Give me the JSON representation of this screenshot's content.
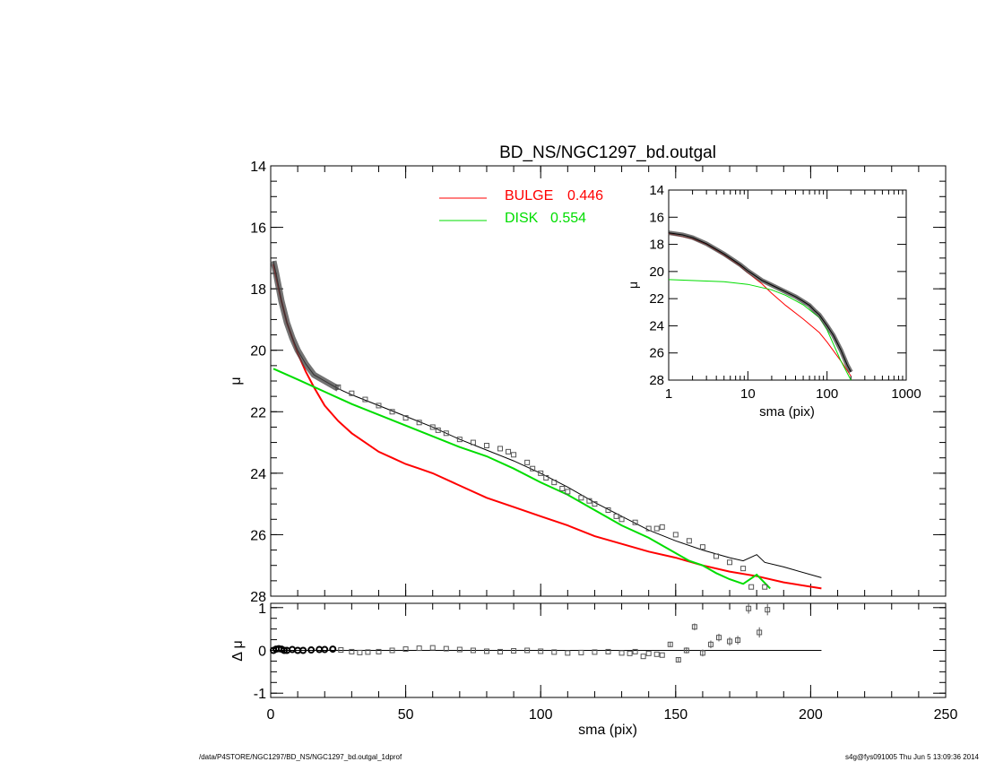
{
  "chart_data": [
    {
      "id": "main",
      "type": "line",
      "title": "BD_NS/NGC1297_bd.outgal",
      "xlabel": "",
      "ylabel": "μ",
      "xlim": [
        0,
        250
      ],
      "ylim": [
        28,
        14
      ],
      "x_ticks": [
        0,
        50,
        100,
        150,
        200,
        250
      ],
      "x_tick_labels": [
        "0",
        "50",
        "100",
        "150",
        "200",
        "250"
      ],
      "y_ticks": [
        14,
        16,
        18,
        20,
        22,
        24,
        26,
        28
      ],
      "y_tick_labels": [
        "14",
        "16",
        "18",
        "20",
        "22",
        "24",
        "26",
        "28"
      ],
      "legend": [
        {
          "label": "BULGE",
          "value": "0.446",
          "color": "#ff0000"
        },
        {
          "label": "DISK",
          "value": "0.554",
          "color": "#00dd00"
        }
      ],
      "series": [
        {
          "name": "BULGE",
          "color": "#ff0000",
          "x": [
            1,
            2,
            3,
            4,
            6,
            8,
            10,
            13,
            16,
            20,
            25,
            30,
            35,
            40,
            45,
            50,
            55,
            60,
            70,
            80,
            90,
            100,
            110,
            120,
            130,
            140,
            150,
            160,
            170,
            180,
            190,
            204
          ],
          "y": [
            17.2,
            17.6,
            18.0,
            18.4,
            19.1,
            19.6,
            20.1,
            20.7,
            21.2,
            21.8,
            22.3,
            22.7,
            23.0,
            23.3,
            23.5,
            23.7,
            23.85,
            24.0,
            24.4,
            24.8,
            25.1,
            25.4,
            25.7,
            26.05,
            26.3,
            26.55,
            26.75,
            27.0,
            27.2,
            27.35,
            27.55,
            27.75
          ]
        },
        {
          "name": "DISK",
          "color": "#00dd00",
          "x": [
            1,
            10,
            20,
            30,
            40,
            50,
            60,
            70,
            80,
            90,
            100,
            110,
            120,
            130,
            140,
            150,
            155,
            160,
            165,
            170,
            175,
            180,
            185,
            190
          ],
          "y": [
            20.6,
            20.95,
            21.35,
            21.75,
            22.1,
            22.45,
            22.8,
            23.15,
            23.45,
            23.85,
            24.3,
            24.7,
            25.2,
            25.7,
            26.1,
            26.6,
            26.85,
            27.0,
            27.25,
            27.45,
            27.6,
            27.3,
            27.75,
            28.1
          ]
        },
        {
          "name": "MODEL",
          "color": "#000000",
          "x": [
            1,
            2,
            3,
            4,
            6,
            8,
            10,
            13,
            16,
            20,
            25,
            30,
            40,
            50,
            60,
            70,
            80,
            90,
            100,
            110,
            120,
            130,
            140,
            150,
            160,
            170,
            175,
            180,
            183,
            190,
            204
          ],
          "y": [
            17.1,
            17.5,
            17.95,
            18.4,
            19.1,
            19.6,
            20.0,
            20.45,
            20.8,
            21.0,
            21.25,
            21.45,
            21.8,
            22.15,
            22.5,
            22.9,
            23.25,
            23.6,
            24.0,
            24.45,
            24.95,
            25.4,
            25.85,
            26.2,
            26.5,
            26.75,
            26.85,
            26.65,
            26.9,
            27.05,
            27.4
          ]
        },
        {
          "name": "DATA",
          "color": "#555555",
          "marker": "square",
          "x": [
            25,
            30,
            35,
            40,
            45,
            50,
            55,
            60,
            62,
            65,
            70,
            75,
            80,
            85,
            88,
            90,
            95,
            97,
            100,
            102,
            105,
            108,
            110,
            115,
            118,
            120,
            125,
            128,
            130,
            135,
            140,
            143,
            145,
            150,
            155,
            160,
            165,
            170,
            175,
            178,
            183
          ],
          "y": [
            21.2,
            21.4,
            21.6,
            21.8,
            22.0,
            22.2,
            22.35,
            22.5,
            22.6,
            22.7,
            22.9,
            23.0,
            23.1,
            23.2,
            23.3,
            23.4,
            23.65,
            23.85,
            24.0,
            24.15,
            24.3,
            24.5,
            24.6,
            24.8,
            24.9,
            25.0,
            25.2,
            25.4,
            25.5,
            25.6,
            25.8,
            25.8,
            25.75,
            26.0,
            26.2,
            26.4,
            26.7,
            26.9,
            27.1,
            27.7,
            27.7
          ]
        }
      ]
    },
    {
      "id": "residual",
      "type": "scatter",
      "xlabel": "sma (pix)",
      "ylabel": "Δ μ",
      "xlim": [
        0,
        250
      ],
      "ylim": [
        -1.1,
        1.1
      ],
      "y_ticks": [
        1,
        0,
        -1
      ],
      "y_tick_labels": [
        "1",
        "0",
        "-1"
      ],
      "x": [
        1,
        2,
        3,
        4,
        5,
        6,
        8,
        10,
        12,
        15,
        18,
        20,
        23,
        26,
        30,
        33,
        36,
        40,
        45,
        50,
        55,
        60,
        65,
        70,
        75,
        80,
        85,
        90,
        95,
        100,
        105,
        110,
        115,
        120,
        125,
        130,
        133,
        135,
        138,
        140,
        143,
        145,
        148,
        151,
        154,
        157,
        160,
        163,
        166,
        170,
        173,
        177,
        181,
        184
      ],
      "y": [
        0.0,
        0.03,
        0.04,
        0.03,
        0.0,
        0.0,
        0.02,
        0.0,
        0.0,
        0.01,
        0.02,
        0.02,
        0.03,
        0.01,
        -0.03,
        -0.05,
        -0.04,
        -0.03,
        0.0,
        0.03,
        0.05,
        0.06,
        0.04,
        0.02,
        0.0,
        -0.02,
        -0.03,
        -0.01,
        0.0,
        -0.02,
        -0.04,
        -0.06,
        -0.05,
        -0.04,
        -0.03,
        -0.06,
        -0.07,
        -0.03,
        -0.14,
        -0.07,
        -0.09,
        -0.11,
        0.14,
        -0.22,
        0.0,
        0.55,
        -0.06,
        0.14,
        0.3,
        0.21,
        0.24,
        0.98,
        0.42,
        0.95
      ],
      "err": [
        0,
        0,
        0,
        0,
        0,
        0,
        0,
        0,
        0,
        0,
        0,
        0,
        0,
        0,
        0,
        0,
        0,
        0,
        0,
        0,
        0,
        0,
        0,
        0,
        0,
        0,
        0,
        0,
        0,
        0,
        0,
        0,
        0,
        0,
        0,
        0,
        0,
        0,
        0,
        0,
        0,
        0,
        0.06,
        0.06,
        0.07,
        0.08,
        0.08,
        0.09,
        0.09,
        0.1,
        0.1,
        0.12,
        0.12,
        0.13
      ]
    },
    {
      "id": "inset",
      "type": "line",
      "xlabel": "sma (pix)",
      "ylabel": "μ",
      "xscale": "log",
      "xlim": [
        1,
        1000
      ],
      "ylim": [
        28,
        14
      ],
      "x_ticks": [
        1,
        10,
        100,
        1000
      ],
      "x_tick_labels": [
        "1",
        "10",
        "100",
        "1000"
      ],
      "y_ticks": [
        14,
        16,
        18,
        20,
        22,
        24,
        26,
        28
      ],
      "y_tick_labels": [
        "14",
        "16",
        "18",
        "20",
        "22",
        "24",
        "26",
        "28"
      ],
      "series": [
        {
          "name": "BULGE",
          "color": "#ff0000",
          "x": [
            1,
            2,
            3,
            5,
            8,
            10,
            15,
            20,
            30,
            50,
            80,
            100,
            150,
            200
          ],
          "y": [
            17.2,
            17.6,
            18.0,
            18.8,
            19.6,
            20.1,
            20.9,
            21.6,
            22.5,
            23.5,
            24.5,
            25.2,
            26.6,
            27.7
          ]
        },
        {
          "name": "DISK",
          "color": "#00dd00",
          "x": [
            1,
            5,
            10,
            20,
            30,
            50,
            80,
            100,
            150,
            200
          ],
          "y": [
            20.6,
            20.75,
            20.95,
            21.35,
            21.75,
            22.45,
            23.4,
            24.3,
            26.6,
            28.0
          ]
        },
        {
          "name": "DATA",
          "color": "#555555",
          "x": [
            1,
            1.5,
            2,
            3,
            5,
            8,
            10,
            15,
            20,
            30,
            40,
            50,
            60,
            70,
            80,
            100,
            120,
            150,
            180,
            200
          ],
          "y": [
            17.15,
            17.3,
            17.5,
            17.95,
            18.7,
            19.5,
            19.95,
            20.65,
            21.0,
            21.5,
            21.85,
            22.2,
            22.5,
            22.9,
            23.2,
            24.0,
            24.7,
            25.8,
            26.9,
            27.4
          ]
        }
      ]
    }
  ],
  "footer": {
    "left": "/data/P4STORE/NGC1297/BD_NS/NGC1297_bd.outgal_1dprof",
    "right": "s4g@fys091005  Thu Jun  5 13:09:36 2014"
  }
}
